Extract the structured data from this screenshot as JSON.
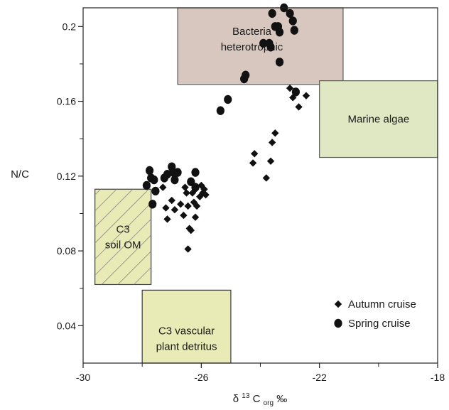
{
  "chart_data": {
    "type": "scatter",
    "title": "",
    "xlabel": {
      "prefix": "δ ",
      "sup": "13",
      "main": "C",
      "sub": "org",
      "suffix": "  ‰"
    },
    "ylabel": "N/C",
    "xlim": [
      -30,
      -18
    ],
    "ylim": [
      0.02,
      0.21
    ],
    "xticks": [
      -30,
      -26,
      -22,
      -18
    ],
    "xtick_labels": [
      "-30",
      "-26",
      "-22",
      "-18"
    ],
    "xminor": [
      -28,
      -24,
      -20
    ],
    "yticks": [
      0.04,
      0.08,
      0.12,
      0.16,
      0.2
    ],
    "ytick_labels": [
      "0.04",
      "0.08",
      "0.12",
      "0.16",
      "0.2"
    ],
    "yminor": [
      0.06,
      0.1,
      0.14,
      0.18
    ],
    "grid": false,
    "legend": "bottom-right",
    "regions": [
      {
        "name": "bacteria",
        "label_lines": [
          "Bacteria",
          "heterotrophic"
        ],
        "x": [
          -26.8,
          -21.2
        ],
        "y": [
          0.169,
          0.21
        ],
        "fill": "#d7c7be",
        "stroke": "#5c5c5c",
        "hatch": false
      },
      {
        "name": "marine-algae",
        "label_lines": [
          "Marine algae"
        ],
        "x": [
          -22.0,
          -18.0
        ],
        "y": [
          0.13,
          0.171
        ],
        "fill": "#dfe8c3",
        "stroke": "#5c5c5c",
        "hatch": false
      },
      {
        "name": "c3-soil-om",
        "label_lines": [
          "C3",
          "soil OM"
        ],
        "x": [
          -29.6,
          -27.7
        ],
        "y": [
          0.062,
          0.113
        ],
        "fill": "#e8ebb6",
        "stroke": "#3a3a3a",
        "hatch": true
      },
      {
        "name": "c3-vascular",
        "label_lines": [
          "C3 vascular",
          "plant detritus"
        ],
        "x": [
          -28.0,
          -25.0
        ],
        "y": [
          0.02,
          0.059
        ],
        "fill": "#e8ebb6",
        "stroke": "#3a3a3a",
        "hatch": false
      }
    ],
    "series": [
      {
        "name": "Autumn cruise",
        "marker": "diamond",
        "points": [
          [
            -27.3,
            0.114
          ],
          [
            -27.2,
            0.103
          ],
          [
            -27.15,
            0.097
          ],
          [
            -27.0,
            0.107
          ],
          [
            -26.9,
            0.102
          ],
          [
            -26.7,
            0.105
          ],
          [
            -26.6,
            0.099
          ],
          [
            -26.55,
            0.114
          ],
          [
            -26.5,
            0.111
          ],
          [
            -26.45,
            0.104
          ],
          [
            -26.4,
            0.092
          ],
          [
            -26.45,
            0.081
          ],
          [
            -26.35,
            0.091
          ],
          [
            -26.3,
            0.111
          ],
          [
            -26.25,
            0.106
          ],
          [
            -26.2,
            0.113
          ],
          [
            -26.2,
            0.098
          ],
          [
            -26.15,
            0.104
          ],
          [
            -26.05,
            0.109
          ],
          [
            -26.0,
            0.115
          ],
          [
            -25.95,
            0.111
          ],
          [
            -25.9,
            0.113
          ],
          [
            -25.85,
            0.11
          ],
          [
            -24.2,
            0.132
          ],
          [
            -24.25,
            0.127
          ],
          [
            -23.8,
            0.119
          ],
          [
            -23.65,
            0.128
          ],
          [
            -23.6,
            0.138
          ],
          [
            -23.5,
            0.143
          ],
          [
            -23.0,
            0.167
          ],
          [
            -22.9,
            0.162
          ],
          [
            -22.7,
            0.157
          ],
          [
            -22.45,
            0.163
          ]
        ]
      },
      {
        "name": "Spring cruise",
        "marker": "circle",
        "points": [
          [
            -27.85,
            0.115
          ],
          [
            -27.75,
            0.123
          ],
          [
            -27.7,
            0.119
          ],
          [
            -27.65,
            0.105
          ],
          [
            -27.6,
            0.118
          ],
          [
            -27.55,
            0.112
          ],
          [
            -27.25,
            0.119
          ],
          [
            -27.15,
            0.121
          ],
          [
            -27.0,
            0.125
          ],
          [
            -26.95,
            0.122
          ],
          [
            -26.9,
            0.118
          ],
          [
            -26.8,
            0.122
          ],
          [
            -26.35,
            0.117
          ],
          [
            -26.2,
            0.122
          ],
          [
            -26.2,
            0.114
          ],
          [
            -25.35,
            0.155
          ],
          [
            -25.1,
            0.161
          ],
          [
            -24.55,
            0.172
          ],
          [
            -24.5,
            0.174
          ],
          [
            -23.9,
            0.191
          ],
          [
            -23.7,
            0.191
          ],
          [
            -23.65,
            0.189
          ],
          [
            -23.6,
            0.207
          ],
          [
            -23.5,
            0.2
          ],
          [
            -23.4,
            0.2
          ],
          [
            -23.35,
            0.197
          ],
          [
            -23.35,
            0.181
          ],
          [
            -23.2,
            0.21
          ],
          [
            -23.0,
            0.207
          ],
          [
            -22.9,
            0.203
          ],
          [
            -22.85,
            0.198
          ],
          [
            -22.8,
            0.165
          ]
        ]
      }
    ]
  }
}
